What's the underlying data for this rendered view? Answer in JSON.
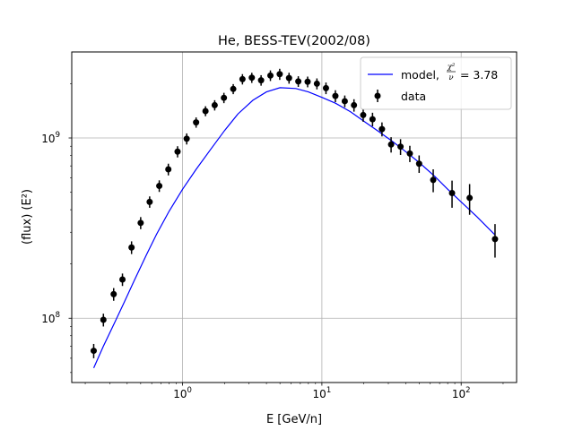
{
  "chart_data": {
    "type": "scatter",
    "title": "He, BESS-TEV(2002/08)",
    "xlabel": "E [GeV/n]",
    "ylabel": "(flux)  (E²)",
    "xscale": "log",
    "yscale": "log",
    "xlim": [
      0.16,
      250
    ],
    "ylim": [
      44000000.0,
      3000000000.0
    ],
    "grid": true,
    "x_ticks": [
      {
        "value": 1,
        "base": "10",
        "exp": "0"
      },
      {
        "value": 10,
        "base": "10",
        "exp": "1"
      },
      {
        "value": 100,
        "base": "10",
        "exp": "2"
      }
    ],
    "y_ticks": [
      {
        "value": 100000000.0,
        "base": "10",
        "exp": "8"
      },
      {
        "value": 1000000000.0,
        "base": "10",
        "exp": "9"
      }
    ],
    "legend": {
      "position": "top-right",
      "entries": [
        {
          "label_prefix": "model, ",
          "label_frac_num": "χ²",
          "label_frac_den": "ν",
          "label_suffix": " = 3.78",
          "style": "line",
          "color": "#0000ff"
        },
        {
          "label": "data",
          "style": "errorbar-point",
          "color": "#000000"
        }
      ]
    },
    "series": [
      {
        "name": "data",
        "kind": "errorbar",
        "color": "#000000",
        "points": [
          {
            "x": 0.23,
            "y": 66000000.0,
            "yerr": 6000000.0
          },
          {
            "x": 0.27,
            "y": 98000000.0,
            "yerr": 8000000.0
          },
          {
            "x": 0.32,
            "y": 136000000.0,
            "yerr": 11000000.0
          },
          {
            "x": 0.37,
            "y": 164000000.0,
            "yerr": 13000000.0
          },
          {
            "x": 0.43,
            "y": 247000000.0,
            "yerr": 20000000.0
          },
          {
            "x": 0.5,
            "y": 338000000.0,
            "yerr": 26000000.0
          },
          {
            "x": 0.58,
            "y": 442000000.0,
            "yerr": 32000000.0
          },
          {
            "x": 0.68,
            "y": 542000000.0,
            "yerr": 40000000.0
          },
          {
            "x": 0.79,
            "y": 670000000.0,
            "yerr": 50000000.0
          },
          {
            "x": 0.92,
            "y": 840000000.0,
            "yerr": 60000000.0
          },
          {
            "x": 1.07,
            "y": 990000000.0,
            "yerr": 70000000.0
          },
          {
            "x": 1.25,
            "y": 1220000000.0,
            "yerr": 80000000.0
          },
          {
            "x": 1.46,
            "y": 1410000000.0,
            "yerr": 90000000.0
          },
          {
            "x": 1.7,
            "y": 1520000000.0,
            "yerr": 100000000.0
          },
          {
            "x": 1.98,
            "y": 1670000000.0,
            "yerr": 110000000.0
          },
          {
            "x": 2.31,
            "y": 1870000000.0,
            "yerr": 120000000.0
          },
          {
            "x": 2.69,
            "y": 2120000000.0,
            "yerr": 140000000.0
          },
          {
            "x": 3.14,
            "y": 2160000000.0,
            "yerr": 140000000.0
          },
          {
            "x": 3.66,
            "y": 2090000000.0,
            "yerr": 140000000.0
          },
          {
            "x": 4.27,
            "y": 2220000000.0,
            "yerr": 150000000.0
          },
          {
            "x": 4.98,
            "y": 2260000000.0,
            "yerr": 160000000.0
          },
          {
            "x": 5.81,
            "y": 2150000000.0,
            "yerr": 150000000.0
          },
          {
            "x": 6.77,
            "y": 2060000000.0,
            "yerr": 140000000.0
          },
          {
            "x": 7.9,
            "y": 2050000000.0,
            "yerr": 140000000.0
          },
          {
            "x": 9.21,
            "y": 2000000000.0,
            "yerr": 140000000.0
          },
          {
            "x": 10.7,
            "y": 1890000000.0,
            "yerr": 140000000.0
          },
          {
            "x": 12.5,
            "y": 1710000000.0,
            "yerr": 130000000.0
          },
          {
            "x": 14.6,
            "y": 1600000000.0,
            "yerr": 120000000.0
          },
          {
            "x": 17.0,
            "y": 1520000000.0,
            "yerr": 120000000.0
          },
          {
            "x": 19.8,
            "y": 1340000000.0,
            "yerr": 110000000.0
          },
          {
            "x": 23.1,
            "y": 1270000000.0,
            "yerr": 110000000.0
          },
          {
            "x": 27.0,
            "y": 1120000000.0,
            "yerr": 100000000.0
          },
          {
            "x": 31.4,
            "y": 920000000.0,
            "yerr": 90000000.0
          },
          {
            "x": 36.7,
            "y": 895000000.0,
            "yerr": 90000000.0
          },
          {
            "x": 42.8,
            "y": 820000000.0,
            "yerr": 85000000.0
          },
          {
            "x": 49.9,
            "y": 720000000.0,
            "yerr": 80000000.0
          },
          {
            "x": 63.0,
            "y": 585000000.0,
            "yerr": 85000000.0
          },
          {
            "x": 86.0,
            "y": 495000000.0,
            "yerr": 85000000.0
          },
          {
            "x": 115.0,
            "y": 465000000.0,
            "yerr": 90000000.0
          },
          {
            "x": 175.0,
            "y": 275000000.0,
            "yerr": 58000000.0
          }
        ]
      },
      {
        "name": "model",
        "kind": "line",
        "color": "#0000ff",
        "x": [
          0.23,
          0.27,
          0.32,
          0.38,
          0.45,
          0.55,
          0.65,
          0.8,
          1.0,
          1.25,
          1.6,
          2.0,
          2.5,
          3.2,
          4.0,
          5.0,
          6.5,
          8.0,
          10,
          12.5,
          16,
          20,
          25,
          32,
          40,
          50,
          65,
          80,
          100,
          130,
          175
        ],
        "y": [
          53000000.0,
          70000000.0,
          92000000.0,
          122000000.0,
          162000000.0,
          225000000.0,
          292000000.0,
          392000000.0,
          520000000.0,
          670000000.0,
          870000000.0,
          1100000000.0,
          1360000000.0,
          1620000000.0,
          1800000000.0,
          1900000000.0,
          1880000000.0,
          1800000000.0,
          1680000000.0,
          1560000000.0,
          1400000000.0,
          1240000000.0,
          1100000000.0,
          960000000.0,
          840000000.0,
          730000000.0,
          610000000.0,
          520000000.0,
          442000000.0,
          365000000.0,
          290000000.0
        ]
      }
    ]
  }
}
